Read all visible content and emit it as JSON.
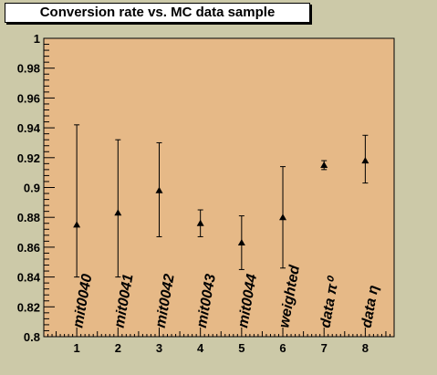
{
  "chart_data": {
    "type": "scatter",
    "title": "Conversion rate vs. MC data sample",
    "xlabel": "",
    "ylabel": "",
    "xlim": [
      0.2,
      8.7
    ],
    "ylim": [
      0.8,
      1.0
    ],
    "xticks": [
      "1",
      "2",
      "3",
      "4",
      "5",
      "6",
      "7",
      "8"
    ],
    "yticks": [
      "0.8",
      "0.82",
      "0.84",
      "0.86",
      "0.88",
      "0.9",
      "0.92",
      "0.94",
      "0.96",
      "0.98",
      "1"
    ],
    "grid": false,
    "points": [
      {
        "label": "mit0040",
        "x": 1,
        "y": 0.875,
        "err_low": 0.035,
        "err_high": 0.067
      },
      {
        "label": "mit0041",
        "x": 2,
        "y": 0.883,
        "err_low": 0.043,
        "err_high": 0.049
      },
      {
        "label": "mit0042",
        "x": 3,
        "y": 0.898,
        "err_low": 0.031,
        "err_high": 0.032
      },
      {
        "label": "mit0043",
        "x": 4,
        "y": 0.876,
        "err_low": 0.009,
        "err_high": 0.009
      },
      {
        "label": "mit0044",
        "x": 5,
        "y": 0.863,
        "err_low": 0.018,
        "err_high": 0.018
      },
      {
        "label": "weighted",
        "x": 6,
        "y": 0.88,
        "err_low": 0.034,
        "err_high": 0.034
      },
      {
        "label": "data π⁰",
        "x": 7,
        "y": 0.915,
        "err_low": 0.003,
        "err_high": 0.003
      },
      {
        "label": "data η",
        "x": 8,
        "y": 0.918,
        "err_low": 0.015,
        "err_high": 0.017
      }
    ]
  },
  "colors": {
    "canvas": "#ccc9a8",
    "plot_area": "#e6b987",
    "marker": "#000000"
  }
}
